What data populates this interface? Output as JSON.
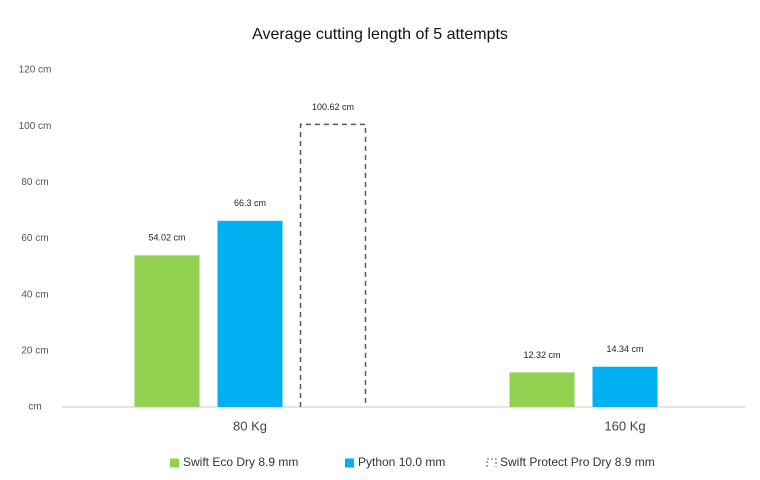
{
  "chart_data": {
    "type": "bar",
    "title": "Average cutting length of 5 attempts",
    "categories": [
      "80 Kg",
      "160 Kg"
    ],
    "series": [
      {
        "name": "Swift Eco Dry 8.9 mm",
        "color": "#92d050",
        "style": "solid",
        "values": [
          54.02,
          12.32
        ],
        "value_labels": [
          "54.02 cm",
          "12.32 cm"
        ]
      },
      {
        "name": "Python 10.0 mm",
        "color": "#00b0f0",
        "style": "solid",
        "values": [
          66.3,
          14.34
        ],
        "value_labels": [
          "66.3 cm",
          "14.34 cm"
        ]
      },
      {
        "name": "Swift Protect Pro Dry 8.9 mm",
        "color": "#595959",
        "style": "dashed",
        "values": [
          100.62,
          null
        ],
        "value_labels": [
          "100.62 cm",
          null
        ]
      }
    ],
    "ylim": [
      0,
      120
    ],
    "yticks": [
      {
        "value": 0,
        "label": "cm"
      },
      {
        "value": 20,
        "label": "20 cm"
      },
      {
        "value": 40,
        "label": "40 cm"
      },
      {
        "value": 60,
        "label": "60 cm"
      },
      {
        "value": 80,
        "label": "80 cm"
      },
      {
        "value": 100,
        "label": "100 cm"
      },
      {
        "value": 120,
        "label": "120 cm"
      }
    ],
    "grid": false,
    "legend": "bottom"
  }
}
